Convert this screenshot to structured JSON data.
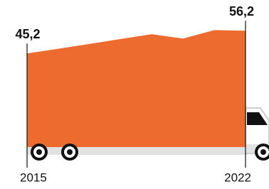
{
  "chart_data": {
    "type": "area",
    "categories": [
      "2015",
      null,
      null,
      null,
      null,
      null,
      null,
      "2022"
    ],
    "values": [
      45.2,
      47.5,
      49.8,
      52.2,
      54.5,
      52.4,
      56.5,
      56.2
    ],
    "value_labels": [
      "45,2",
      null,
      null,
      null,
      null,
      null,
      null,
      "56,2"
    ],
    "color": "#ee6b2f",
    "ylim": [
      0,
      70
    ]
  }
}
